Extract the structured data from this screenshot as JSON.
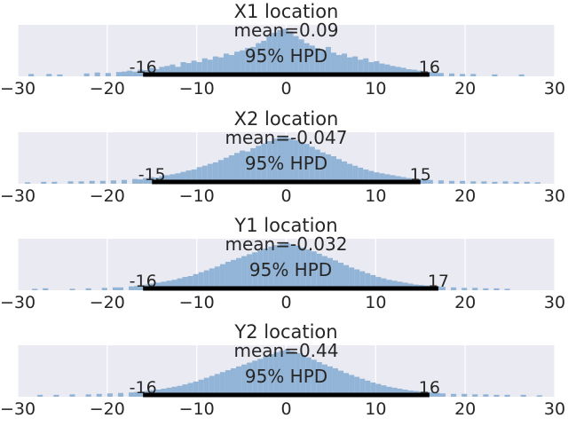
{
  "chart_data": [
    {
      "type": "histogram",
      "title": "X1 location",
      "mean_label": "mean=0.09",
      "hpd_label": "95% HPD",
      "hpd": [
        -16,
        16
      ],
      "hpd_low_label": "-16",
      "hpd_high_label": "16",
      "xlim": [
        -30,
        30
      ],
      "xticks": [
        "−30",
        "−20",
        "−10",
        "0",
        "10",
        "20",
        "30"
      ],
      "grid": true,
      "bin_width": 0.6,
      "bins": [
        [
          -28.5,
          0.05
        ],
        [
          -26.5,
          0.05
        ],
        [
          -25.3,
          0.04
        ],
        [
          -22.3,
          0.06
        ],
        [
          -21.1,
          0.08
        ],
        [
          -19.9,
          0.07
        ],
        [
          -18.7,
          0.09
        ],
        [
          -18.1,
          0.1
        ],
        [
          -17.5,
          0.12
        ],
        [
          -16.9,
          0.1
        ],
        [
          -16.3,
          0.14
        ],
        [
          -15.7,
          0.13
        ],
        [
          -15.1,
          0.18
        ],
        [
          -14.5,
          0.15
        ],
        [
          -13.9,
          0.2
        ],
        [
          -13.3,
          0.22
        ],
        [
          -12.7,
          0.25
        ],
        [
          -12.1,
          0.2
        ],
        [
          -11.5,
          0.3
        ],
        [
          -10.9,
          0.28
        ],
        [
          -10.3,
          0.33
        ],
        [
          -9.7,
          0.3
        ],
        [
          -9.1,
          0.38
        ],
        [
          -8.5,
          0.35
        ],
        [
          -7.9,
          0.42
        ],
        [
          -7.3,
          0.4
        ],
        [
          -6.7,
          0.48
        ],
        [
          -6.1,
          0.45
        ],
        [
          -5.5,
          0.52
        ],
        [
          -4.9,
          0.55
        ],
        [
          -4.3,
          0.6
        ],
        [
          -3.7,
          0.62
        ],
        [
          -3.1,
          0.7
        ],
        [
          -2.5,
          0.75
        ],
        [
          -1.9,
          0.85
        ],
        [
          -1.3,
          0.92
        ],
        [
          -0.7,
          0.98
        ],
        [
          -0.1,
          1.0
        ],
        [
          0.5,
          0.95
        ],
        [
          1.1,
          0.85
        ],
        [
          1.7,
          0.78
        ],
        [
          2.3,
          0.7
        ],
        [
          2.9,
          0.65
        ],
        [
          3.5,
          0.6
        ],
        [
          4.1,
          0.55
        ],
        [
          4.7,
          0.62
        ],
        [
          5.3,
          0.5
        ],
        [
          5.9,
          0.45
        ],
        [
          6.5,
          0.48
        ],
        [
          7.1,
          0.4
        ],
        [
          7.7,
          0.42
        ],
        [
          8.3,
          0.35
        ],
        [
          8.9,
          0.38
        ],
        [
          9.5,
          0.3
        ],
        [
          10.1,
          0.32
        ],
        [
          10.7,
          0.27
        ],
        [
          11.3,
          0.25
        ],
        [
          11.9,
          0.22
        ],
        [
          12.5,
          0.2
        ],
        [
          13.1,
          0.18
        ],
        [
          13.7,
          0.15
        ],
        [
          14.3,
          0.14
        ],
        [
          14.9,
          0.12
        ],
        [
          15.5,
          0.1
        ],
        [
          16.1,
          0.09
        ],
        [
          16.7,
          0.08
        ],
        [
          17.3,
          0.07
        ],
        [
          18.5,
          0.06
        ],
        [
          19.7,
          0.05
        ],
        [
          20.9,
          0.05
        ],
        [
          23.3,
          0.04
        ],
        [
          26.3,
          0.04
        ]
      ]
    },
    {
      "type": "histogram",
      "title": "X2 location",
      "mean_label": "mean=-0.047",
      "hpd_label": "95% HPD",
      "hpd": [
        -15,
        15
      ],
      "hpd_low_label": "-15",
      "hpd_high_label": "15",
      "xlim": [
        -30,
        30
      ],
      "xticks": [
        "−30",
        "−20",
        "−10",
        "0",
        "10",
        "20",
        "30"
      ],
      "grid": true,
      "bin_width": 0.6,
      "bins": [
        [
          -28.9,
          0.03
        ],
        [
          -27.1,
          0.04
        ],
        [
          -25.9,
          0.04
        ],
        [
          -24.1,
          0.05
        ],
        [
          -22.9,
          0.05
        ],
        [
          -21.7,
          0.06
        ],
        [
          -20.5,
          0.06
        ],
        [
          -19.3,
          0.07
        ],
        [
          -18.1,
          0.08
        ],
        [
          -16.9,
          0.1
        ],
        [
          -16.3,
          0.09
        ],
        [
          -15.7,
          0.12
        ],
        [
          -15.1,
          0.14
        ],
        [
          -14.5,
          0.13
        ],
        [
          -13.9,
          0.16
        ],
        [
          -13.3,
          0.18
        ],
        [
          -12.7,
          0.2
        ],
        [
          -12.1,
          0.22
        ],
        [
          -11.5,
          0.25
        ],
        [
          -10.9,
          0.28
        ],
        [
          -10.3,
          0.3
        ],
        [
          -9.7,
          0.35
        ],
        [
          -9.1,
          0.38
        ],
        [
          -8.5,
          0.42
        ],
        [
          -7.9,
          0.45
        ],
        [
          -7.3,
          0.5
        ],
        [
          -6.7,
          0.55
        ],
        [
          -6.1,
          0.6
        ],
        [
          -5.5,
          0.65
        ],
        [
          -4.9,
          0.7
        ],
        [
          -4.3,
          0.68
        ],
        [
          -3.7,
          0.75
        ],
        [
          -3.1,
          0.8
        ],
        [
          -2.5,
          0.85
        ],
        [
          -1.9,
          0.9
        ],
        [
          -1.3,
          0.95
        ],
        [
          -0.7,
          0.98
        ],
        [
          -0.1,
          1.0
        ],
        [
          0.5,
          0.96
        ],
        [
          1.1,
          0.92
        ],
        [
          1.7,
          0.88
        ],
        [
          2.3,
          0.84
        ],
        [
          2.9,
          0.78
        ],
        [
          3.5,
          0.72
        ],
        [
          4.1,
          0.66
        ],
        [
          4.7,
          0.62
        ],
        [
          5.3,
          0.58
        ],
        [
          5.9,
          0.52
        ],
        [
          6.5,
          0.47
        ],
        [
          7.1,
          0.42
        ],
        [
          7.7,
          0.38
        ],
        [
          8.3,
          0.34
        ],
        [
          8.9,
          0.3
        ],
        [
          9.5,
          0.27
        ],
        [
          10.1,
          0.24
        ],
        [
          10.7,
          0.22
        ],
        [
          11.3,
          0.2
        ],
        [
          11.9,
          0.18
        ],
        [
          12.5,
          0.16
        ],
        [
          13.1,
          0.14
        ],
        [
          13.7,
          0.12
        ],
        [
          14.3,
          0.11
        ],
        [
          14.9,
          0.1
        ],
        [
          15.5,
          0.09
        ],
        [
          16.1,
          0.08
        ],
        [
          17.3,
          0.07
        ],
        [
          18.5,
          0.06
        ],
        [
          19.7,
          0.06
        ],
        [
          20.9,
          0.05
        ],
        [
          22.1,
          0.05
        ],
        [
          23.3,
          0.04
        ],
        [
          24.5,
          0.05
        ],
        [
          25.7,
          0.04
        ],
        [
          26.9,
          0.04
        ],
        [
          28.1,
          0.03
        ]
      ]
    },
    {
      "type": "histogram",
      "title": "Y1 location",
      "mean_label": "mean=-0.032",
      "hpd_label": "95% HPD",
      "hpd": [
        -16,
        17
      ],
      "hpd_low_label": "-16",
      "hpd_high_label": "17",
      "xlim": [
        -30,
        30
      ],
      "xticks": [
        "−30",
        "−20",
        "−10",
        "0",
        "10",
        "20",
        "30"
      ],
      "grid": true,
      "bin_width": 0.6,
      "bins": [
        [
          -28.1,
          0.03
        ],
        [
          -26.9,
          0.04
        ],
        [
          -23.9,
          0.03
        ],
        [
          -22.1,
          0.04
        ],
        [
          -20.3,
          0.05
        ],
        [
          -19.1,
          0.06
        ],
        [
          -18.5,
          0.06
        ],
        [
          -17.3,
          0.08
        ],
        [
          -16.7,
          0.09
        ],
        [
          -16.1,
          0.1
        ],
        [
          -15.5,
          0.12
        ],
        [
          -14.9,
          0.14
        ],
        [
          -14.3,
          0.16
        ],
        [
          -13.7,
          0.18
        ],
        [
          -13.1,
          0.2
        ],
        [
          -12.5,
          0.22
        ],
        [
          -11.9,
          0.25
        ],
        [
          -11.3,
          0.28
        ],
        [
          -10.7,
          0.3
        ],
        [
          -10.1,
          0.34
        ],
        [
          -9.5,
          0.38
        ],
        [
          -8.9,
          0.42
        ],
        [
          -8.3,
          0.46
        ],
        [
          -7.7,
          0.5
        ],
        [
          -7.1,
          0.55
        ],
        [
          -6.5,
          0.6
        ],
        [
          -5.9,
          0.64
        ],
        [
          -5.3,
          0.68
        ],
        [
          -4.7,
          0.72
        ],
        [
          -4.1,
          0.76
        ],
        [
          -3.5,
          0.8
        ],
        [
          -2.9,
          0.84
        ],
        [
          -2.3,
          0.88
        ],
        [
          -1.7,
          0.92
        ],
        [
          -1.1,
          0.95
        ],
        [
          -0.5,
          0.98
        ],
        [
          0.1,
          1.0
        ],
        [
          0.7,
          0.97
        ],
        [
          1.3,
          0.94
        ],
        [
          1.9,
          0.9
        ],
        [
          2.5,
          0.86
        ],
        [
          3.1,
          0.82
        ],
        [
          3.7,
          0.77
        ],
        [
          4.3,
          0.72
        ],
        [
          4.9,
          0.68
        ],
        [
          5.5,
          0.63
        ],
        [
          6.1,
          0.58
        ],
        [
          6.7,
          0.53
        ],
        [
          7.3,
          0.48
        ],
        [
          7.9,
          0.44
        ],
        [
          8.5,
          0.4
        ],
        [
          9.1,
          0.36
        ],
        [
          9.7,
          0.32
        ],
        [
          10.3,
          0.28
        ],
        [
          10.9,
          0.25
        ],
        [
          11.5,
          0.22
        ],
        [
          12.1,
          0.2
        ],
        [
          12.7,
          0.18
        ],
        [
          13.3,
          0.16
        ],
        [
          13.9,
          0.14
        ],
        [
          14.5,
          0.12
        ],
        [
          15.1,
          0.11
        ],
        [
          15.7,
          0.1
        ],
        [
          16.3,
          0.09
        ],
        [
          16.9,
          0.08
        ],
        [
          17.5,
          0.07
        ],
        [
          18.7,
          0.06
        ],
        [
          19.9,
          0.05
        ],
        [
          21.1,
          0.05
        ],
        [
          22.3,
          0.04
        ],
        [
          23.5,
          0.04
        ],
        [
          24.7,
          0.03
        ]
      ]
    },
    {
      "type": "histogram",
      "title": "Y2 location",
      "mean_label": "mean=0.44",
      "hpd_label": "95% HPD",
      "hpd": [
        -16,
        16
      ],
      "hpd_low_label": "-16",
      "hpd_high_label": "16",
      "xlim": [
        -30,
        30
      ],
      "xticks": [
        "−30",
        "−20",
        "−10",
        "0",
        "10",
        "20",
        "30"
      ],
      "grid": true,
      "bin_width": 0.6,
      "bins": [
        [
          -27.5,
          0.04
        ],
        [
          -25.7,
          0.04
        ],
        [
          -23.9,
          0.05
        ],
        [
          -22.1,
          0.05
        ],
        [
          -20.9,
          0.06
        ],
        [
          -19.7,
          0.07
        ],
        [
          -18.5,
          0.08
        ],
        [
          -17.3,
          0.09
        ],
        [
          -16.7,
          0.1
        ],
        [
          -16.1,
          0.11
        ],
        [
          -15.5,
          0.12
        ],
        [
          -14.9,
          0.14
        ],
        [
          -14.3,
          0.15
        ],
        [
          -13.7,
          0.17
        ],
        [
          -13.1,
          0.19
        ],
        [
          -12.5,
          0.21
        ],
        [
          -11.9,
          0.23
        ],
        [
          -11.3,
          0.26
        ],
        [
          -10.7,
          0.29
        ],
        [
          -10.1,
          0.32
        ],
        [
          -9.5,
          0.36
        ],
        [
          -8.9,
          0.4
        ],
        [
          -8.3,
          0.44
        ],
        [
          -7.7,
          0.48
        ],
        [
          -7.1,
          0.52
        ],
        [
          -6.5,
          0.56
        ],
        [
          -5.9,
          0.6
        ],
        [
          -5.3,
          0.64
        ],
        [
          -4.7,
          0.68
        ],
        [
          -4.1,
          0.72
        ],
        [
          -3.5,
          0.76
        ],
        [
          -2.9,
          0.8
        ],
        [
          -2.3,
          0.85
        ],
        [
          -1.7,
          0.9
        ],
        [
          -1.1,
          0.94
        ],
        [
          -0.5,
          0.97
        ],
        [
          0.1,
          1.0
        ],
        [
          0.7,
          0.96
        ],
        [
          1.3,
          0.92
        ],
        [
          1.9,
          0.88
        ],
        [
          2.5,
          0.83
        ],
        [
          3.1,
          0.78
        ],
        [
          3.7,
          0.73
        ],
        [
          4.3,
          0.68
        ],
        [
          4.9,
          0.64
        ],
        [
          5.5,
          0.6
        ],
        [
          6.1,
          0.55
        ],
        [
          6.7,
          0.5
        ],
        [
          7.3,
          0.46
        ],
        [
          7.9,
          0.42
        ],
        [
          8.5,
          0.38
        ],
        [
          9.1,
          0.34
        ],
        [
          9.7,
          0.3
        ],
        [
          10.3,
          0.27
        ],
        [
          10.9,
          0.24
        ],
        [
          11.5,
          0.21
        ],
        [
          12.1,
          0.19
        ],
        [
          12.7,
          0.17
        ],
        [
          13.3,
          0.15
        ],
        [
          13.9,
          0.13
        ],
        [
          14.5,
          0.12
        ],
        [
          15.1,
          0.11
        ],
        [
          15.7,
          0.1
        ],
        [
          16.3,
          0.09
        ],
        [
          16.9,
          0.08
        ],
        [
          17.5,
          0.07
        ],
        [
          18.7,
          0.06
        ],
        [
          19.9,
          0.06
        ],
        [
          21.1,
          0.05
        ],
        [
          22.3,
          0.05
        ],
        [
          23.5,
          0.04
        ],
        [
          24.7,
          0.04
        ],
        [
          26.5,
          0.04
        ],
        [
          28.3,
          0.03
        ]
      ]
    }
  ],
  "colors": {
    "bar": "#92b4d6",
    "panel_bg": "#eaeaf2",
    "grid": "#ffffff",
    "hpd_line": "#000000",
    "text": "#262626"
  }
}
